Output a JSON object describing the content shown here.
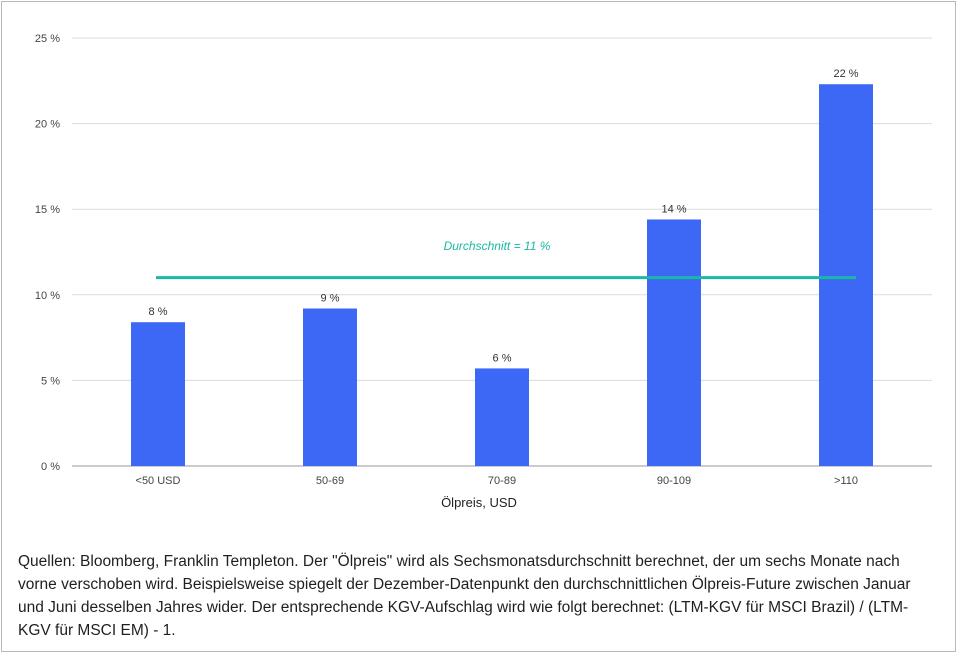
{
  "chart_data": {
    "type": "bar",
    "categories": [
      "<50 USD",
      "50-69",
      "70-89",
      "90-109",
      ">110"
    ],
    "values": [
      8.4,
      9.2,
      5.7,
      14.4,
      22.3
    ],
    "data_labels": [
      "8 %",
      "9 %",
      "6 %",
      "14 %",
      "22 %"
    ],
    "xlabel": "Ölpreis, USD",
    "ylabel": "",
    "ylim": [
      0,
      25
    ],
    "yticks": [
      0,
      5,
      10,
      15,
      20,
      25
    ],
    "ytick_labels": [
      "0 %",
      "5 %",
      "10 %",
      "15 %",
      "20 %",
      "25 %"
    ],
    "grid": true,
    "bar_color": "#3d68f5",
    "average": {
      "value": 11,
      "label": "Durchschnitt = 11 %",
      "color": "#1ab8a6"
    }
  },
  "caption": "Quellen: Bloomberg, Franklin Templeton. Der \"Ölpreis\" wird als Sechsmonatsdurchschnitt berechnet, der um sechs Monate nach vorne verschoben wird. Beispielsweise spiegelt der Dezember-Datenpunkt den durchschnittlichen Ölpreis-Future zwischen Januar und Juni desselben Jahres wider. Der entsprechende KGV-Aufschlag wird wie folgt berechnet: (LTM-KGV für MSCI Brazil) / (LTM-KGV für MSCI EM) - 1."
}
